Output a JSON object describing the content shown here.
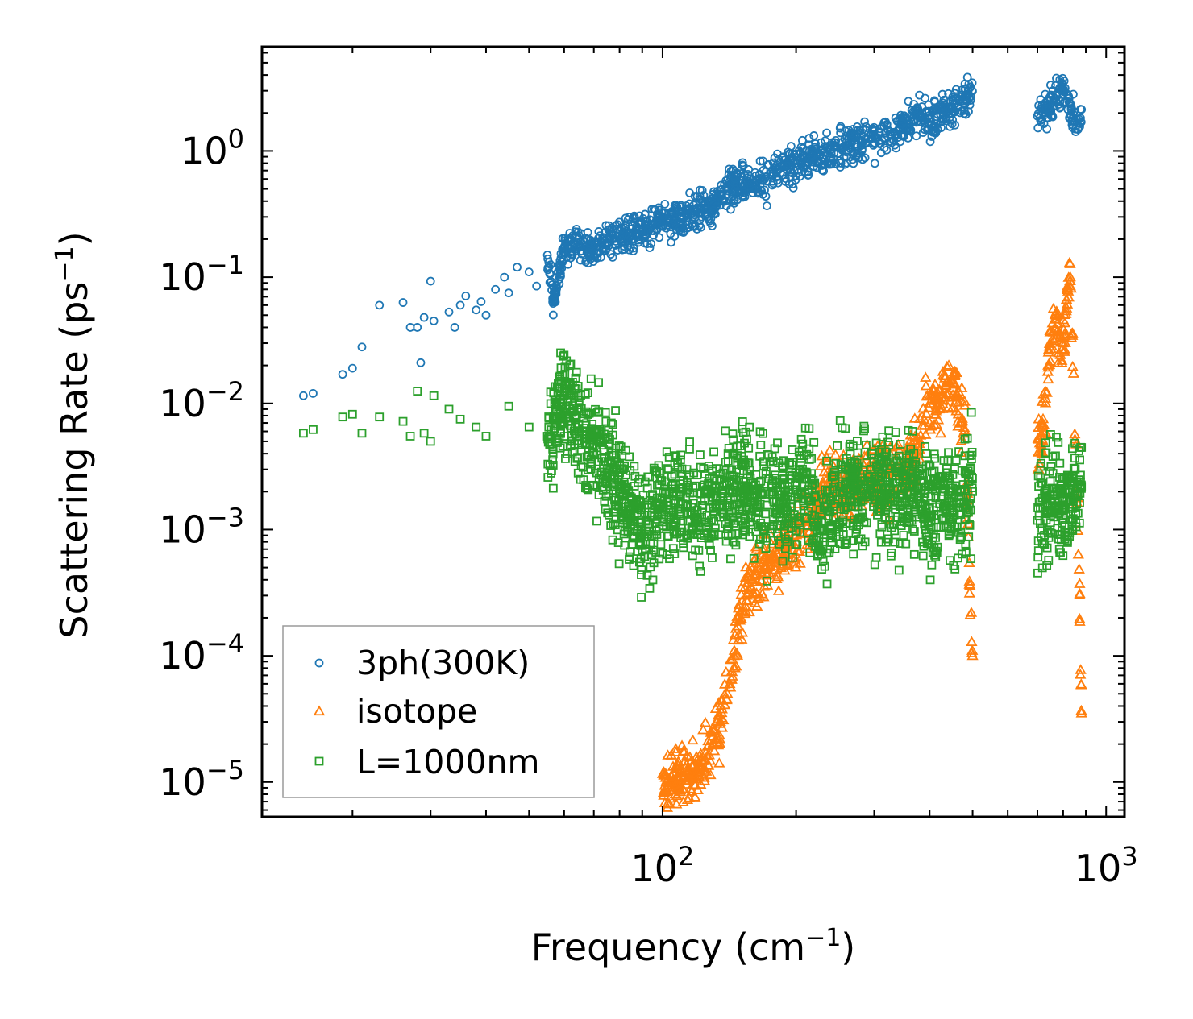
{
  "chart_data": {
    "type": "scatter",
    "xscale": "log",
    "yscale": "log",
    "xlabel": {
      "main": "Frequency (cm",
      "sup": "−1",
      "end": ")"
    },
    "ylabel": {
      "main": "Scattering Rate (ps",
      "sup": "−1",
      "end": ")"
    },
    "xlim": [
      12.5,
      1100
    ],
    "ylim": [
      5.3e-06,
      6.7
    ],
    "xticks": [
      {
        "value": 100,
        "base": "10",
        "exp": "2"
      },
      {
        "value": 1000,
        "base": "10",
        "exp": "3"
      }
    ],
    "yticks": [
      {
        "value": 1,
        "base": "10",
        "exp": "0"
      },
      {
        "value": 0.1,
        "base": "10",
        "exp": "−1"
      },
      {
        "value": 0.01,
        "base": "10",
        "exp": "−2"
      },
      {
        "value": 0.001,
        "base": "10",
        "exp": "−3"
      },
      {
        "value": 0.0001,
        "base": "10",
        "exp": "−4"
      },
      {
        "value": 1e-05,
        "base": "10",
        "exp": "−5"
      }
    ],
    "legend_position": "lower-left",
    "series": [
      {
        "name": "3ph(300K)",
        "marker": "circle",
        "color": "#1f77b4",
        "points": [
          [
            15.5,
            0.0115
          ],
          [
            16.3,
            0.012
          ],
          [
            19,
            0.017
          ],
          [
            20,
            0.019
          ],
          [
            21,
            0.028
          ],
          [
            23,
            0.06
          ],
          [
            26,
            0.063
          ],
          [
            27,
            0.04
          ],
          [
            28,
            0.04
          ],
          [
            28.5,
            0.021
          ],
          [
            29,
            0.048
          ],
          [
            30,
            0.093
          ],
          [
            30.5,
            0.045
          ],
          [
            33,
            0.053
          ],
          [
            34,
            0.04
          ],
          [
            35,
            0.06
          ],
          [
            36,
            0.071
          ],
          [
            38,
            0.055
          ],
          [
            39,
            0.064
          ],
          [
            40,
            0.05
          ],
          [
            42,
            0.08
          ],
          [
            44,
            0.1
          ],
          [
            45,
            0.075
          ],
          [
            47,
            0.12
          ],
          [
            50,
            0.11
          ],
          [
            52,
            0.085
          ],
          [
            55,
            0.15
          ],
          [
            57,
            0.065
          ],
          [
            60,
            0.17
          ],
          [
            65,
            0.18
          ],
          [
            70,
            0.16
          ],
          [
            75,
            0.2
          ],
          [
            80,
            0.21
          ],
          [
            90,
            0.23
          ],
          [
            100,
            0.28
          ],
          [
            110,
            0.3
          ],
          [
            120,
            0.34
          ],
          [
            130,
            0.36
          ],
          [
            140,
            0.5
          ],
          [
            150,
            0.55
          ],
          [
            170,
            0.6
          ],
          [
            190,
            0.75
          ],
          [
            200,
            0.8
          ],
          [
            220,
            0.9
          ],
          [
            240,
            0.95
          ],
          [
            260,
            1.1
          ],
          [
            280,
            1.2
          ],
          [
            300,
            1.3
          ],
          [
            330,
            1.4
          ],
          [
            350,
            1.7
          ],
          [
            380,
            2.0
          ],
          [
            400,
            1.8
          ],
          [
            430,
            2.1
          ],
          [
            460,
            2.4
          ],
          [
            490,
            2.8
          ],
          [
            720,
            2.0
          ],
          [
            760,
            2.5
          ],
          [
            800,
            3.0
          ],
          [
            850,
            1.7
          ]
        ]
      },
      {
        "name": "isotope",
        "marker": "triangle",
        "color": "#ff7f0e",
        "points": [
          [
            102,
            1e-05
          ],
          [
            110,
            1.1e-05
          ],
          [
            120,
            1.2e-05
          ],
          [
            130,
            2e-05
          ],
          [
            135,
            3e-05
          ],
          [
            140,
            5e-05
          ],
          [
            145,
            0.0001
          ],
          [
            150,
            0.0002
          ],
          [
            155,
            0.0003
          ],
          [
            160,
            0.0004
          ],
          [
            170,
            0.0005
          ],
          [
            180,
            0.0006
          ],
          [
            200,
            0.0008
          ],
          [
            220,
            0.0015
          ],
          [
            230,
            0.0022
          ],
          [
            250,
            0.002
          ],
          [
            300,
            0.0025
          ],
          [
            350,
            0.003
          ],
          [
            380,
            0.005
          ],
          [
            400,
            0.01
          ],
          [
            420,
            0.009
          ],
          [
            440,
            0.015
          ],
          [
            460,
            0.012
          ],
          [
            480,
            0.006
          ],
          [
            500,
            0.0001
          ],
          [
            720,
            0.006
          ],
          [
            740,
            0.02
          ],
          [
            770,
            0.05
          ],
          [
            800,
            0.03
          ],
          [
            830,
            0.1
          ],
          [
            860,
            0.002
          ],
          [
            880,
            3.5e-05
          ]
        ]
      },
      {
        "name": "L=1000nm",
        "marker": "square",
        "color": "#2ca02c",
        "points": [
          [
            15.5,
            0.0058
          ],
          [
            16.3,
            0.0062
          ],
          [
            19,
            0.0078
          ],
          [
            20,
            0.0082
          ],
          [
            21,
            0.0058
          ],
          [
            23,
            0.0078
          ],
          [
            26,
            0.0072
          ],
          [
            27,
            0.0055
          ],
          [
            28,
            0.0125
          ],
          [
            29,
            0.0058
          ],
          [
            30,
            0.005
          ],
          [
            30.5,
            0.0115
          ],
          [
            33,
            0.009
          ],
          [
            35,
            0.0075
          ],
          [
            38,
            0.0065
          ],
          [
            40,
            0.0055
          ],
          [
            45,
            0.0095
          ],
          [
            50,
            0.0065
          ],
          [
            55,
            0.0055
          ],
          [
            60,
            0.0115
          ],
          [
            65,
            0.006
          ],
          [
            70,
            0.004
          ],
          [
            75,
            0.003
          ],
          [
            80,
            0.002
          ],
          [
            85,
            0.0013
          ],
          [
            90,
            0.0009
          ],
          [
            100,
            0.0015
          ],
          [
            110,
            0.002
          ],
          [
            120,
            0.0012
          ],
          [
            130,
            0.0018
          ],
          [
            150,
            0.0022
          ],
          [
            170,
            0.002
          ],
          [
            190,
            0.0016
          ],
          [
            210,
            0.0025
          ],
          [
            230,
            0.0008
          ],
          [
            250,
            0.0022
          ],
          [
            270,
            0.002
          ],
          [
            300,
            0.0025
          ],
          [
            330,
            0.0018
          ],
          [
            360,
            0.0022
          ],
          [
            400,
            0.0015
          ],
          [
            430,
            0.002
          ],
          [
            460,
            0.0016
          ],
          [
            500,
            0.002
          ],
          [
            720,
            0.0015
          ],
          [
            760,
            0.0021
          ],
          [
            800,
            0.0012
          ],
          [
            840,
            0.0019
          ],
          [
            880,
            0.0022
          ]
        ]
      }
    ]
  }
}
